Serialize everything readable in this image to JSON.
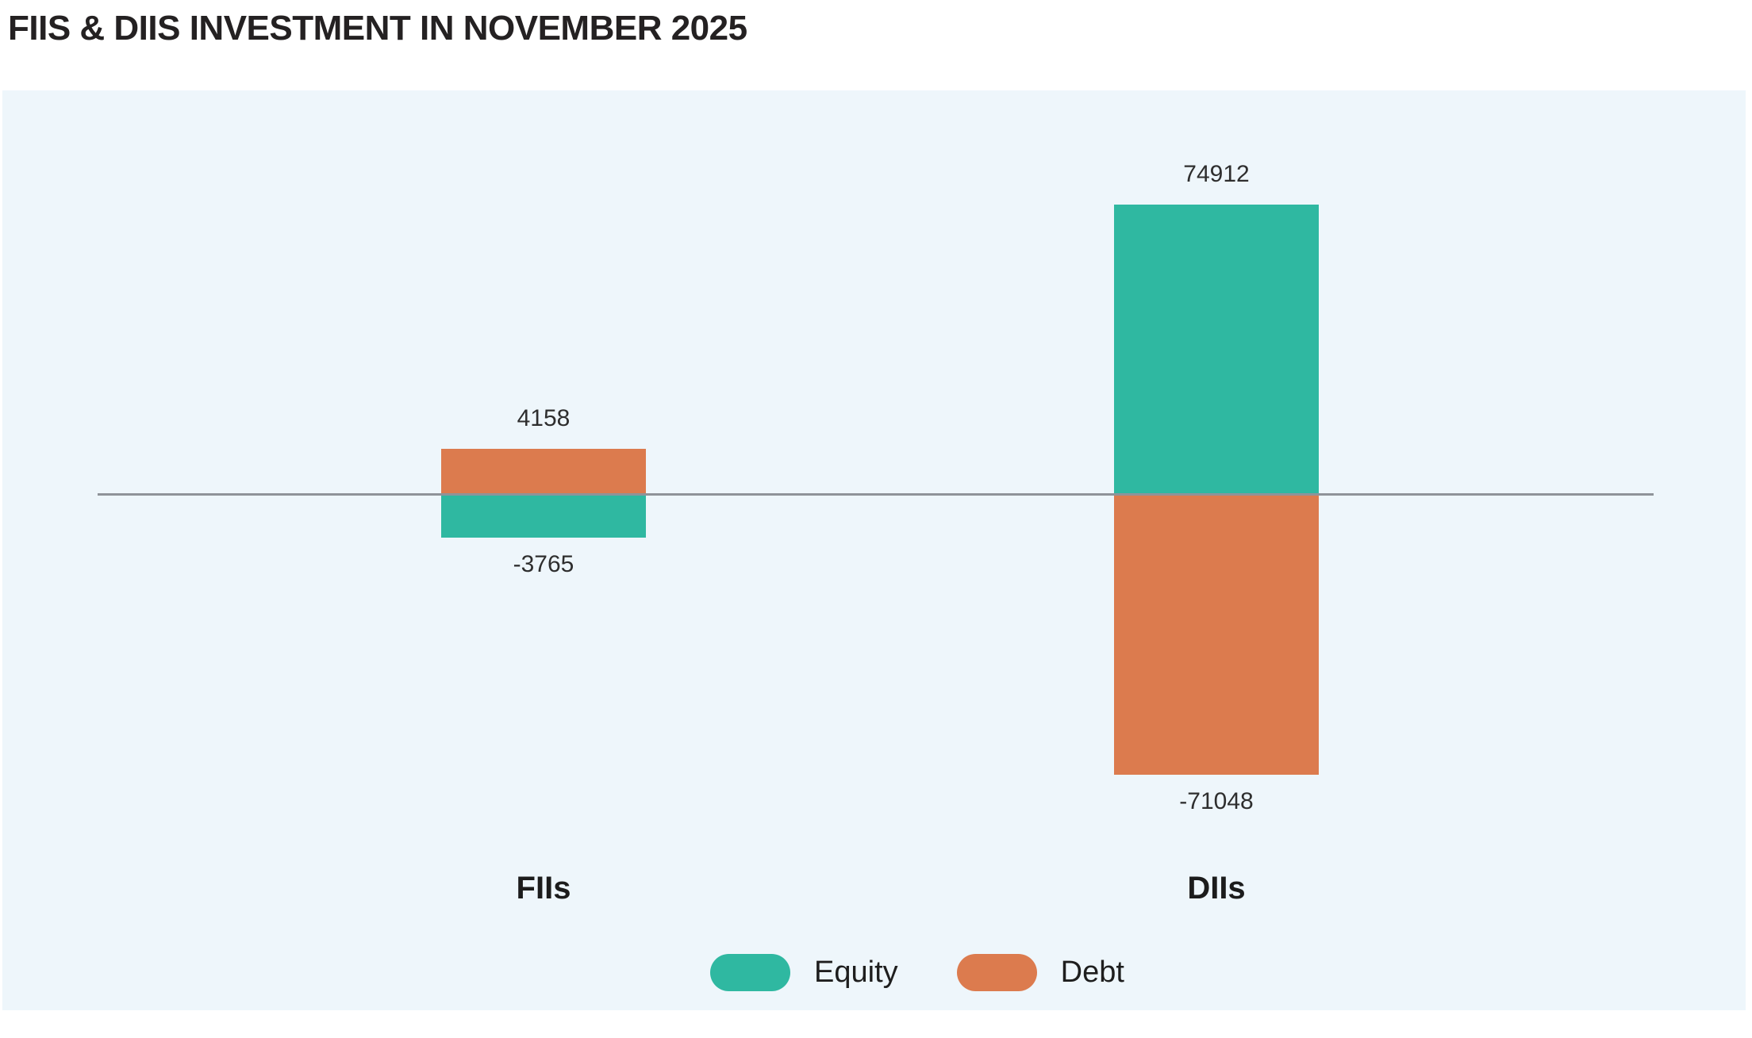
{
  "page_title": "FIIS & DIIS INVESTMENT IN NOVEMBER 2025",
  "colors": {
    "equity": "#2FB8A1",
    "debt": "#DC7B4E",
    "panel_background": "#EEF6FB",
    "zero_line": "#8F9399",
    "title_text": "#242122",
    "label_text": "#2E2E2E"
  },
  "chart_data": {
    "type": "bar",
    "subtype": "diverging-stacked-columns",
    "title": "FIIS & DIIS INVESTMENT IN NOVEMBER 2025",
    "categories": [
      "FIIs",
      "DIIs"
    ],
    "series": [
      {
        "name": "Equity",
        "color": "#2FB8A1",
        "values": [
          -3765,
          74912
        ]
      },
      {
        "name": "Debt",
        "color": "#DC7B4E",
        "values": [
          4158,
          -71048
        ]
      }
    ],
    "data_labels": {
      "shown": true,
      "FIIs": {
        "Equity": "-3765",
        "Debt": "4158"
      },
      "DIIs": {
        "Equity": "74912",
        "Debt": "-71048"
      }
    },
    "legend": {
      "position": "bottom",
      "entries": [
        "Equity",
        "Debt"
      ]
    },
    "axes": {
      "y_axis_labels_visible": false,
      "gridlines": false,
      "zero_baseline_visible": true
    }
  }
}
